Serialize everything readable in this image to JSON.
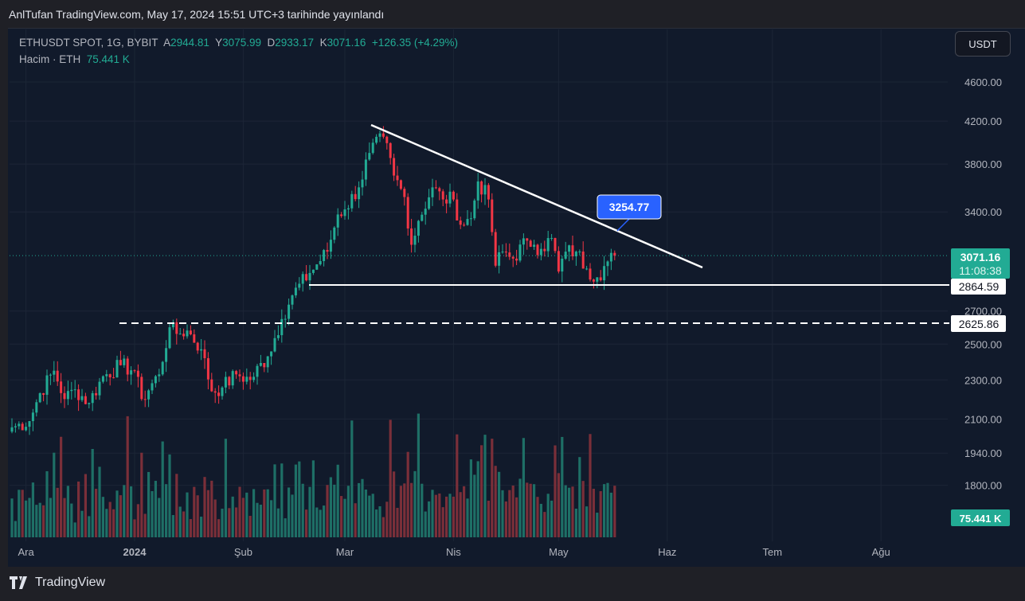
{
  "header": {
    "title": "AnlTufan TradingView.com, May 17, 2024 15:51 UTC+3 tarihinde yayınlandı"
  },
  "legend": {
    "symbol": "ETHUSDT SPOT, 1G, BYBIT",
    "o_label": "A",
    "o": "2944.81",
    "h_label": "Y",
    "h": "3075.99",
    "l_label": "D",
    "l": "2933.17",
    "c_label": "K",
    "c": "3071.16",
    "change": "+126.35 (+4.29%)",
    "volume_label": "Hacim · ETH",
    "volume": "75.441 K"
  },
  "currency_button": "USDT",
  "footer": {
    "brand": "TradingView"
  },
  "colors": {
    "up": "#22ab94",
    "down": "#f23645",
    "bg": "#111a2b",
    "label": "#2962ff"
  },
  "chart_data": {
    "type": "candlestick",
    "scale": "log",
    "y_ticks": [
      "4600.00",
      "4200.00",
      "3800.00",
      "3400.00",
      "2700.00",
      "2500.00",
      "2300.00",
      "2100.00",
      "1940.00",
      "1800.00"
    ],
    "y_tick_values": [
      4600,
      4200,
      3800,
      3400,
      2700,
      2500,
      2300,
      2100,
      1940,
      1800
    ],
    "x_ticks": [
      "Ara",
      "2024",
      "Şub",
      "Mar",
      "Nis",
      "May",
      "Haz",
      "Tem",
      "Ağu"
    ],
    "x_tick_days": [
      4,
      35,
      66,
      95,
      126,
      156,
      187,
      217,
      248
    ],
    "approx_closes": [
      [
        0,
        2060
      ],
      [
        5,
        2090
      ],
      [
        8,
        2230
      ],
      [
        12,
        2350
      ],
      [
        15,
        2200
      ],
      [
        18,
        2250
      ],
      [
        22,
        2180
      ],
      [
        26,
        2320
      ],
      [
        31,
        2380
      ],
      [
        35,
        2350
      ],
      [
        37,
        2200
      ],
      [
        42,
        2330
      ],
      [
        45,
        2600
      ],
      [
        47,
        2560
      ],
      [
        50,
        2580
      ],
      [
        54,
        2470
      ],
      [
        57,
        2240
      ],
      [
        60,
        2260
      ],
      [
        64,
        2330
      ],
      [
        68,
        2300
      ],
      [
        73,
        2430
      ],
      [
        77,
        2650
      ],
      [
        80,
        2800
      ],
      [
        85,
        2950
      ],
      [
        90,
        3100
      ],
      [
        93,
        3380
      ],
      [
        95,
        3420
      ],
      [
        99,
        3600
      ],
      [
        102,
        3900
      ],
      [
        106,
        4050
      ],
      [
        109,
        3700
      ],
      [
        112,
        3520
      ],
      [
        114,
        3150
      ],
      [
        116,
        3330
      ],
      [
        120,
        3600
      ],
      [
        123,
        3500
      ],
      [
        126,
        3500
      ],
      [
        128,
        3300
      ],
      [
        131,
        3350
      ],
      [
        133,
        3650
      ],
      [
        136,
        3500
      ],
      [
        138,
        3000
      ],
      [
        140,
        3100
      ],
      [
        143,
        3050
      ],
      [
        147,
        3180
      ],
      [
        149,
        3150
      ],
      [
        151,
        3120
      ],
      [
        154,
        3200
      ],
      [
        156,
        2960
      ],
      [
        158,
        3100
      ],
      [
        161,
        3100
      ],
      [
        164,
        2980
      ],
      [
        167,
        2920
      ],
      [
        170,
        3030
      ],
      [
        172,
        3071.16
      ]
    ],
    "last_price": "3071.16",
    "countdown": "11:08:38",
    "support": "2864.59",
    "dashed_level": "2625.86",
    "trendline_label": "3254.77",
    "volume_last": "75.441 K"
  }
}
